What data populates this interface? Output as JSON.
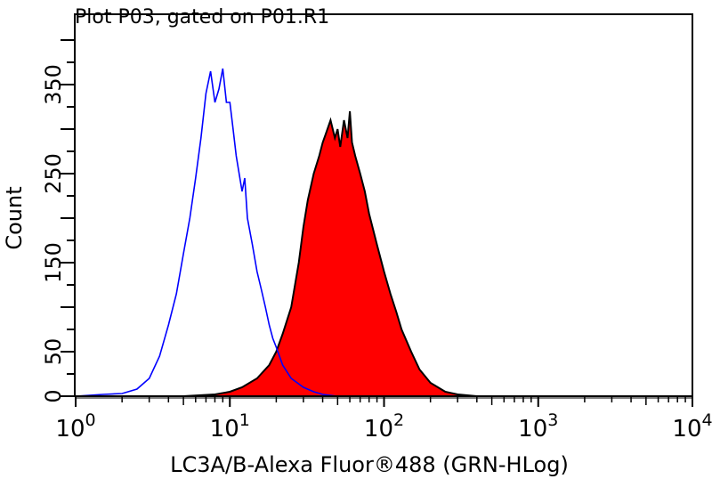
{
  "chart_data": {
    "type": "area",
    "title": "Plot P03, gated on P01.R1",
    "xlabel": "LC3A/B-Alexa Fluor®488 (GRN-HLog)",
    "ylabel": "Count",
    "xscale": "log",
    "xlim": [
      1,
      10000
    ],
    "ylim": [
      0,
      405
    ],
    "grid": false,
    "x_ticks": [
      {
        "base": "10",
        "exp": "0",
        "value": 1
      },
      {
        "base": "10",
        "exp": "1",
        "value": 10
      },
      {
        "base": "10",
        "exp": "2",
        "value": 100
      },
      {
        "base": "10",
        "exp": "3",
        "value": 1000
      },
      {
        "base": "10",
        "exp": "4",
        "value": 10000
      }
    ],
    "y_ticks": [
      "0",
      "50",
      "150",
      "250",
      "350"
    ],
    "y_tick_values": [
      0,
      50,
      150,
      250,
      350
    ],
    "series": [
      {
        "style": "outline",
        "color": "#0000ff",
        "x": [
          1,
          1.5,
          2,
          2.5,
          3,
          3.5,
          4,
          4.5,
          5,
          5.5,
          6,
          6.5,
          7,
          7.5,
          8,
          8.5,
          9,
          9.5,
          10,
          10.5,
          11,
          12,
          12.5,
          13,
          14,
          15,
          16,
          17,
          18,
          19,
          20,
          22,
          25,
          30,
          35,
          40,
          50
        ],
        "y": [
          0,
          2,
          3,
          8,
          20,
          45,
          80,
          115,
          160,
          200,
          245,
          290,
          340,
          365,
          330,
          345,
          368,
          330,
          330,
          300,
          270,
          230,
          245,
          200,
          170,
          140,
          120,
          100,
          80,
          65,
          55,
          35,
          20,
          10,
          5,
          2,
          0
        ]
      },
      {
        "style": "filled",
        "color": "#ff0000",
        "edge_color": "#000000",
        "x": [
          1,
          5,
          8,
          10,
          12,
          15,
          18,
          20,
          22,
          25,
          28,
          30,
          32,
          35,
          38,
          40,
          42,
          45,
          48,
          50,
          52,
          55,
          58,
          60,
          62,
          65,
          70,
          75,
          80,
          90,
          100,
          110,
          120,
          130,
          150,
          170,
          200,
          250,
          300,
          400,
          10000
        ],
        "y": [
          0,
          0,
          2,
          5,
          10,
          20,
          35,
          50,
          70,
          100,
          150,
          190,
          220,
          250,
          270,
          285,
          295,
          310,
          290,
          300,
          280,
          310,
          290,
          320,
          285,
          270,
          250,
          230,
          205,
          170,
          140,
          115,
          95,
          75,
          50,
          30,
          15,
          5,
          2,
          0,
          0
        ]
      }
    ]
  }
}
